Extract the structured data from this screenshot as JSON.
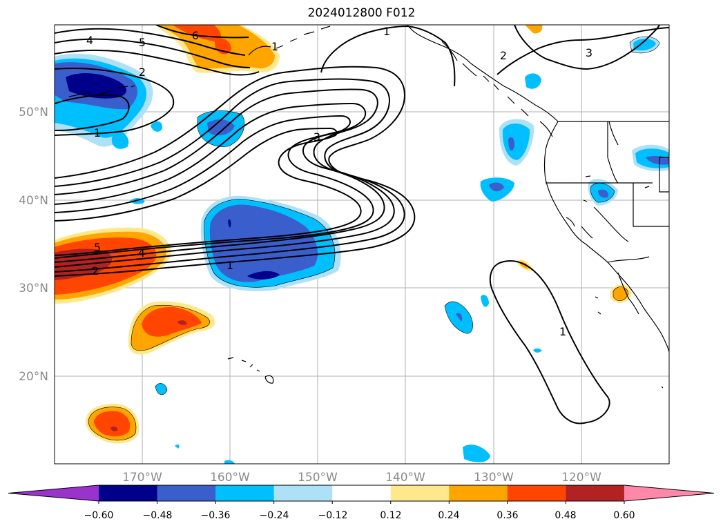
{
  "title": "2024012800 F012",
  "map": {
    "longitude_ticks": [
      "170°W",
      "160°W",
      "150°W",
      "140°W",
      "130°W",
      "120°W"
    ],
    "latitude_ticks": [
      "50°N",
      "40°N",
      "30°N",
      "20°N"
    ],
    "contour_labels": [
      "4",
      "5",
      "6",
      "2",
      "1",
      "1",
      "3",
      "3",
      "2",
      "1",
      "5",
      "4",
      "2",
      "1",
      "1"
    ]
  },
  "colorbar": {
    "colors": [
      "#9933cc",
      "#00008b",
      "#3a5fcd",
      "#00bfff",
      "#aee0f7",
      "#ffffff",
      "#fde98c",
      "#ffa500",
      "#ff4500",
      "#b22222",
      "#ff88aa"
    ],
    "tick_labels": [
      "−0.60",
      "−0.48",
      "−0.36",
      "−0.24",
      "−0.12",
      "0.12",
      "0.24",
      "0.36",
      "0.48",
      "0.60"
    ]
  }
}
